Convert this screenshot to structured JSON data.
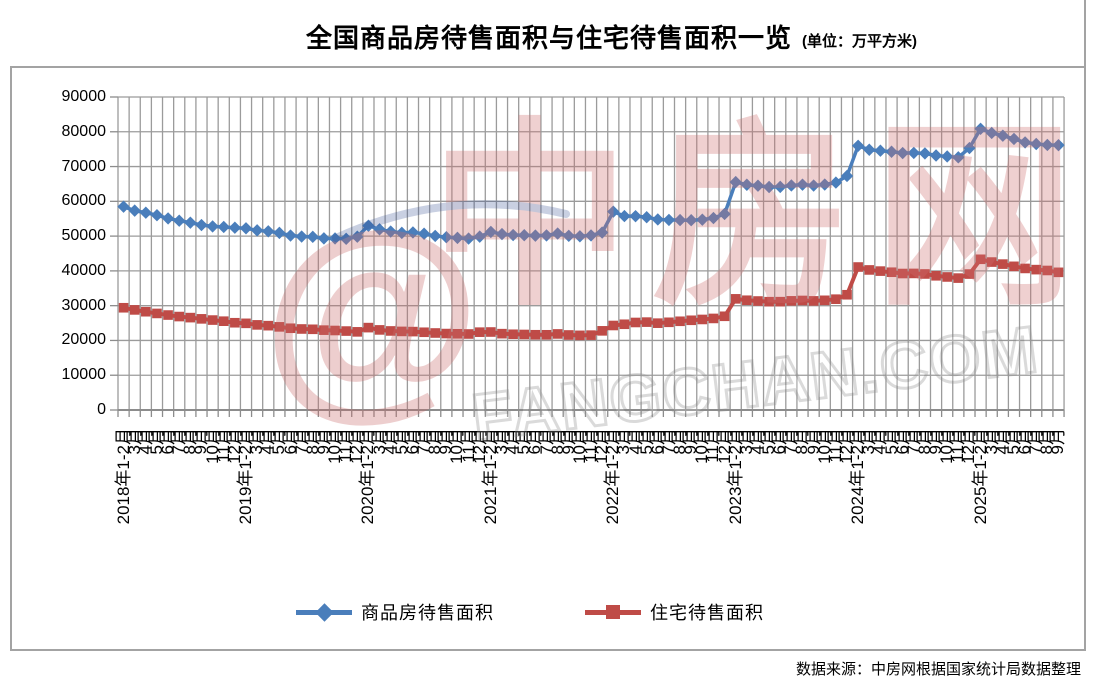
{
  "title": {
    "main": "全国商品房待售面积与住宅待售面积一览",
    "unit": "(单位：万平方米)"
  },
  "source": "数据来源：中房网根据国家统计局数据整理",
  "watermark": {
    "at_symbol": "@",
    "brand": "中房网",
    "domain": "FANGCHAN.COM"
  },
  "colors": {
    "series1": "#4a7ebb",
    "series2": "#bf4b47",
    "grid": "#9b9b9b",
    "axis": "#8c8c8c",
    "frame": "#a3a3a3"
  },
  "legend": {
    "items": [
      {
        "label": "商品房待售面积",
        "color": "#4a7ebb",
        "marker": "diamond"
      },
      {
        "label": "住宅待售面积",
        "color": "#bf4b47",
        "marker": "square"
      }
    ]
  },
  "y_axis": {
    "ticks": [
      0,
      10000,
      20000,
      30000,
      40000,
      50000,
      60000,
      70000,
      80000,
      90000
    ]
  },
  "chart_data": {
    "type": "line",
    "title": "全国商品房待售面积与住宅待售面积一览",
    "unit": "万平方米",
    "ylim": [
      0,
      90000
    ],
    "ytick_step": 10000,
    "grid": "both",
    "legend_position": "bottom",
    "categories": [
      "2018年1-2月",
      "3月",
      "4月",
      "5月",
      "6月",
      "7月",
      "8月",
      "9月",
      "10月",
      "11月",
      "12月",
      "2019年1-2月",
      "3月",
      "4月",
      "5月",
      "6月",
      "7月",
      "8月",
      "9月",
      "10月",
      "11月",
      "12月",
      "2020年1-2月",
      "3月",
      "4月",
      "5月",
      "6月",
      "7月",
      "8月",
      "9月",
      "10月",
      "11月",
      "12月",
      "2021年1-2月",
      "3月",
      "4月",
      "5月",
      "6月",
      "7月",
      "8月",
      "9月",
      "10月",
      "11月",
      "12月",
      "2022年1-2月",
      "3月",
      "4月",
      "5月",
      "6月",
      "7月",
      "8月",
      "9月",
      "10月",
      "11月",
      "12月",
      "2023年1-2月",
      "3月",
      "4月",
      "5月",
      "6月",
      "7月",
      "8月",
      "9月",
      "10月",
      "11月",
      "12月",
      "2024年1-2月",
      "3月",
      "4月",
      "5月",
      "6月",
      "7月",
      "8月",
      "9月",
      "10月",
      "11月",
      "12月",
      "2025年1-2月",
      "3月",
      "4月",
      "5月",
      "6月",
      "7月",
      "8月",
      "9月"
    ],
    "series": [
      {
        "name": "商品房待售面积",
        "color": "#4a7ebb",
        "marker": "diamond",
        "values": [
          58468,
          57329,
          56726,
          56010,
          55083,
          54428,
          53873,
          53191,
          52789,
          52627,
          52414,
          52251,
          51646,
          51380,
          50928,
          50162,
          49876,
          49784,
          49346,
          49323,
          49221,
          49821,
          52976,
          51943,
          51312,
          50928,
          51068,
          50682,
          50052,
          49689,
          49492,
          49287,
          49850,
          51208,
          50576,
          50305,
          50254,
          50143,
          50201,
          50738,
          50085,
          49948,
          50203,
          51023,
          57026,
          55762,
          55734,
          55433,
          54784,
          54655,
          54605,
          54573,
          54734,
          55203,
          56366,
          65528,
          64770,
          64487,
          64120,
          64159,
          64564,
          64795,
          64537,
          64835,
          65385,
          67295,
          75969,
          74833,
          74553,
          74256,
          73894,
          73926,
          73784,
          73177,
          72909,
          72645,
          75327,
          80864,
          79654,
          78862,
          77941,
          76948,
          76486,
          76214,
          76147
        ]
      },
      {
        "name": "住宅待售面积",
        "color": "#bf4b47",
        "marker": "square",
        "values": [
          29400,
          28780,
          28260,
          27767,
          27304,
          26869,
          26565,
          26207,
          25860,
          25534,
          25091,
          24921,
          24474,
          24248,
          23906,
          23508,
          23295,
          23207,
          22962,
          22860,
          22699,
          22473,
          23690,
          23030,
          22730,
          22600,
          22544,
          22354,
          22143,
          21978,
          21916,
          21855,
          22379,
          22425,
          21948,
          21777,
          21716,
          21639,
          21629,
          21871,
          21574,
          21463,
          21526,
          22761,
          24299,
          24652,
          25167,
          25270,
          24966,
          25219,
          25512,
          25797,
          26035,
          26329,
          26947,
          31960,
          31560,
          31337,
          31142,
          31149,
          31386,
          31494,
          31373,
          31540,
          31863,
          33139,
          41113,
          40273,
          39938,
          39615,
          39244,
          39269,
          39115,
          38590,
          38255,
          37927,
          39088,
          43337,
          42538,
          41950,
          41311,
          40706,
          40363,
          40119,
          39585
        ]
      }
    ]
  }
}
